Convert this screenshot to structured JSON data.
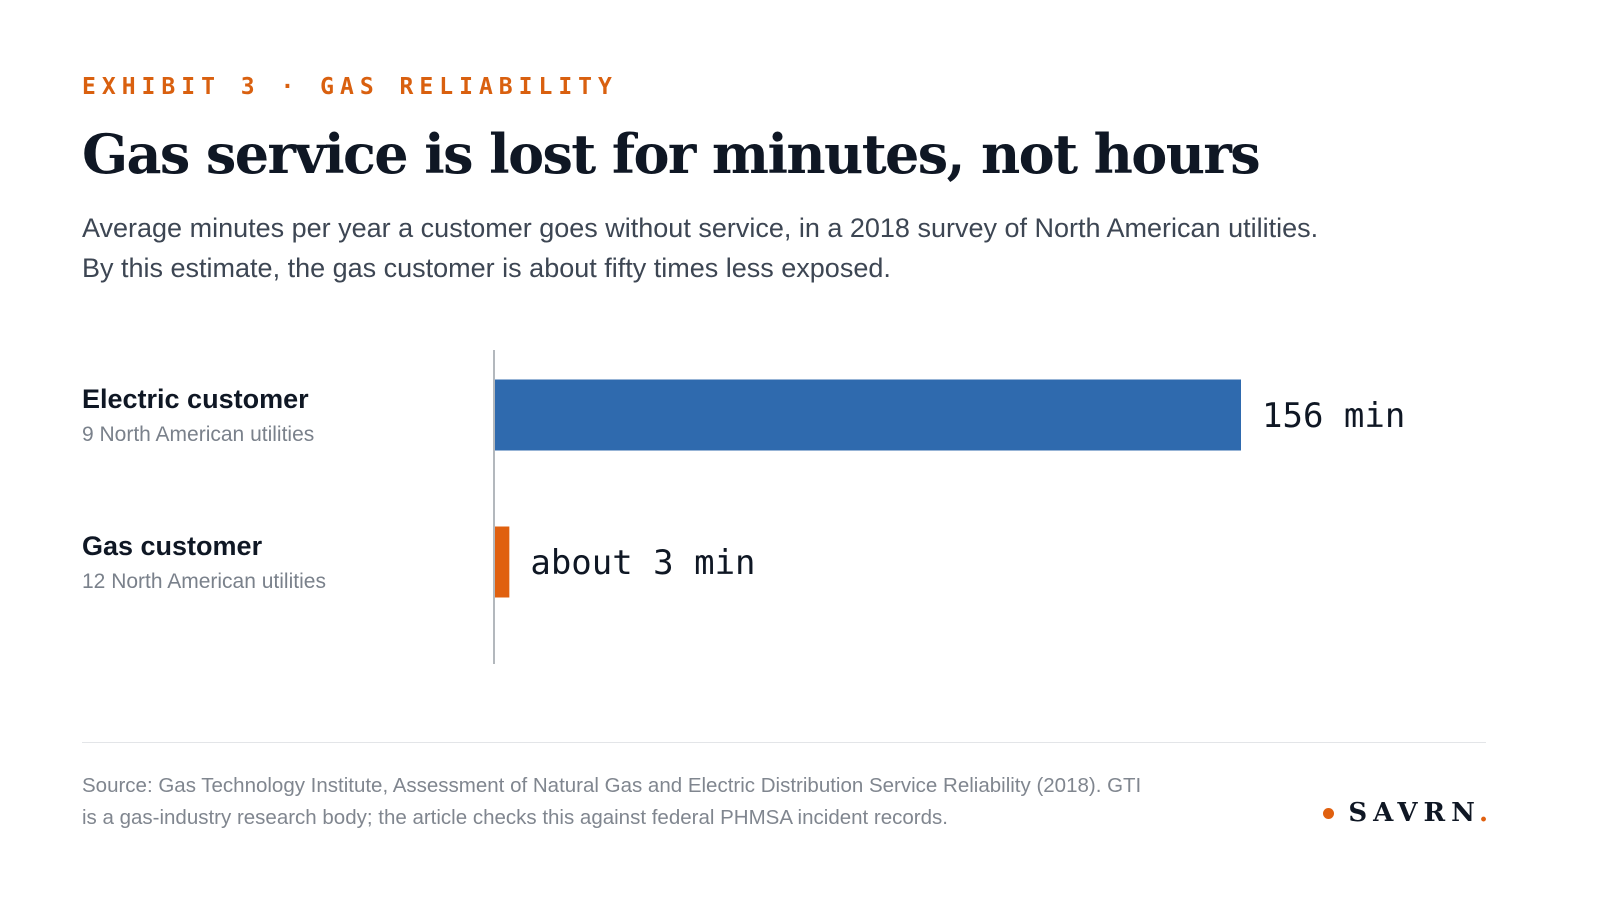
{
  "header": {
    "eyebrow": "EXHIBIT 3 · GAS RELIABILITY",
    "title": "Gas service is lost for minutes, not hours",
    "subtitle_lines": [
      "Average minutes per year a customer goes without service, in a 2018 survey of North American utilities.",
      "By this estimate, the gas customer is about fifty times less exposed."
    ]
  },
  "chart_data": {
    "type": "bar",
    "orientation": "horizontal",
    "categories": [
      "Electric customer",
      "Gas customer"
    ],
    "category_notes": [
      "9 North American utilities",
      "12 North American utilities"
    ],
    "values": [
      156,
      3
    ],
    "value_labels": [
      "156 min",
      "about 3 min"
    ],
    "colors": [
      "#2f6aae",
      "#e0600f"
    ],
    "xlim": [
      0,
      156
    ],
    "grid": false
  },
  "footer": {
    "source_lines": [
      "Source: Gas Technology Institute, Assessment of Natural Gas and Electric Distribution Service Reliability (2018). GTI",
      "is a gas-industry research body; the article checks this against federal PHMSA incident records."
    ],
    "logo_text": "SAVRN",
    "logo_period": ".",
    "accent_color": "#e0600f"
  }
}
